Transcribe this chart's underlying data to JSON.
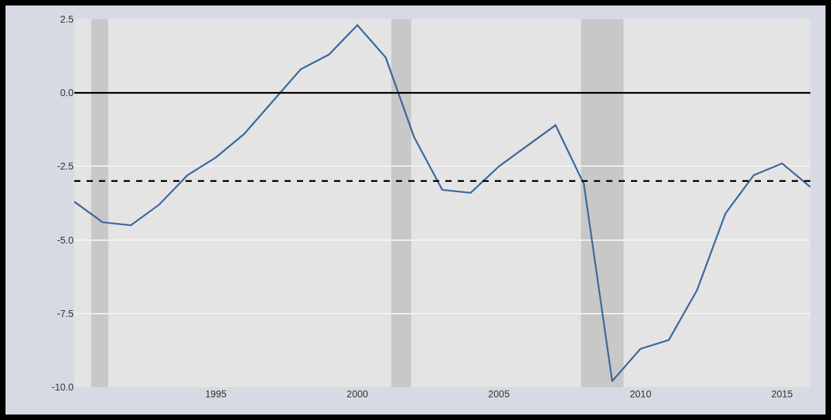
{
  "chart_data": {
    "type": "line",
    "x": [
      1990,
      1991,
      1992,
      1993,
      1994,
      1995,
      1996,
      1997,
      1998,
      1999,
      2000,
      2001,
      2002,
      2003,
      2004,
      2005,
      2006,
      2007,
      2008,
      2009,
      2010,
      2011,
      2012,
      2013,
      2014,
      2015,
      2016
    ],
    "series": [
      {
        "color": "#3d6a9c",
        "values": [
          -3.7,
          -4.4,
          -4.5,
          -3.8,
          -2.8,
          -2.2,
          -1.4,
          -0.3,
          0.8,
          1.3,
          2.3,
          1.2,
          -1.5,
          -3.3,
          -3.4,
          -2.5,
          -1.8,
          -1.1,
          -3.1,
          -9.8,
          -8.7,
          -8.4,
          -6.7,
          -4.1,
          -2.8,
          -2.4,
          -3.2
        ]
      }
    ],
    "xlim": [
      1990,
      2016
    ],
    "xticks": [
      1995,
      2000,
      2005,
      2010,
      2015
    ],
    "ylim": [
      -10,
      2.5
    ],
    "yticks": [
      2.5,
      {
        "value": 0,
        "label": "0.0"
      },
      -2.5,
      {
        "value": -5,
        "label": "-5.0"
      },
      -7.5,
      {
        "value": -10,
        "label": "-10.0"
      }
    ],
    "grid": "y",
    "marker": "none",
    "line_style": "solid",
    "legend": false,
    "ref_lines": [
      {
        "axis": "y",
        "value": 0,
        "color": "#000000",
        "line_style": "solid"
      },
      {
        "axis": "y",
        "value": -3,
        "color": "#000000",
        "line_style": "dashed"
      }
    ],
    "bands": [
      {
        "axis": "x",
        "from": 1990.6,
        "to": 1991.2,
        "color": "#c8c8c8"
      },
      {
        "axis": "x",
        "from": 2001.2,
        "to": 2001.9,
        "color": "#c8c8c8"
      },
      {
        "axis": "x",
        "from": 2007.9,
        "to": 2009.4,
        "color": "#c8c8c8"
      }
    ]
  }
}
